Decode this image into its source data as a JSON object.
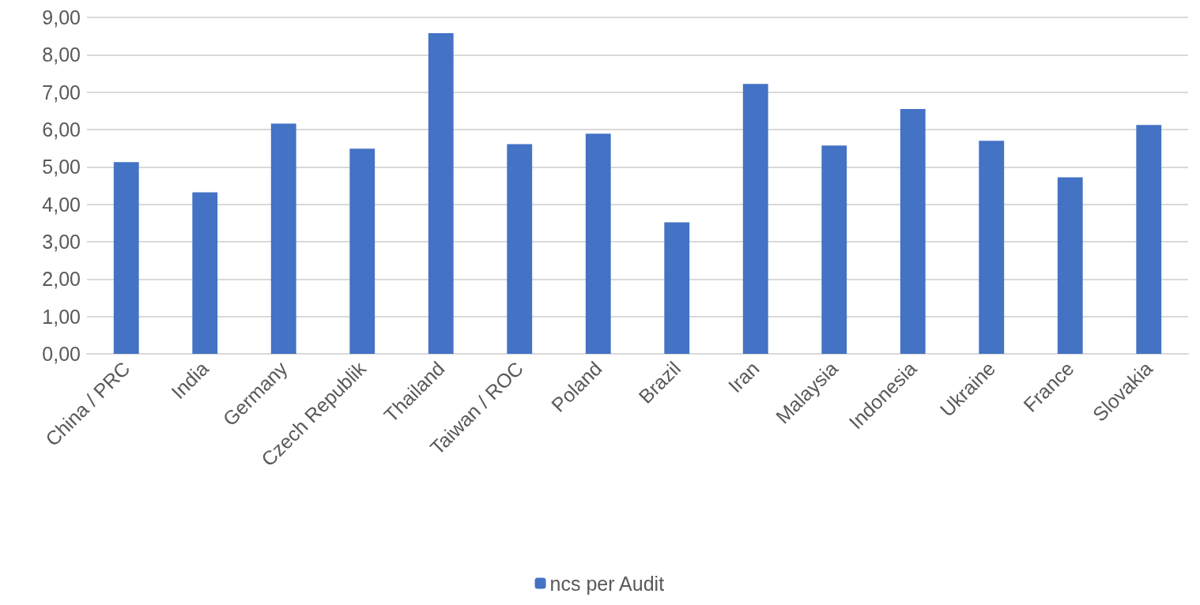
{
  "chart_data": {
    "type": "bar",
    "categories": [
      "China / PRC",
      "India",
      "Germany",
      "Czech Republik",
      "Thailand",
      "Taiwan / ROC",
      "Poland",
      "Brazil",
      "Iran",
      "Malaysia",
      "Indonesia",
      "Ukraine",
      "France",
      "Slovakia"
    ],
    "series": [
      {
        "name": "ncs per Audit",
        "color": "#4472c4",
        "values": [
          5.13,
          4.32,
          6.16,
          5.49,
          8.58,
          5.61,
          5.89,
          3.52,
          7.22,
          5.57,
          6.55,
          5.7,
          4.72,
          6.12
        ]
      }
    ],
    "ylim": [
      0,
      9
    ],
    "yticks": [
      {
        "value": 0,
        "label": "0,00"
      },
      {
        "value": 1,
        "label": "1,00"
      },
      {
        "value": 2,
        "label": "2,00"
      },
      {
        "value": 3,
        "label": "3,00"
      },
      {
        "value": 4,
        "label": "4,00"
      },
      {
        "value": 5,
        "label": "5,00"
      },
      {
        "value": 6,
        "label": "6,00"
      },
      {
        "value": 7,
        "label": "7,00"
      },
      {
        "value": 8,
        "label": "8,00"
      },
      {
        "value": 9,
        "label": "9,00"
      }
    ],
    "grid": "y",
    "legend": "bottom"
  }
}
